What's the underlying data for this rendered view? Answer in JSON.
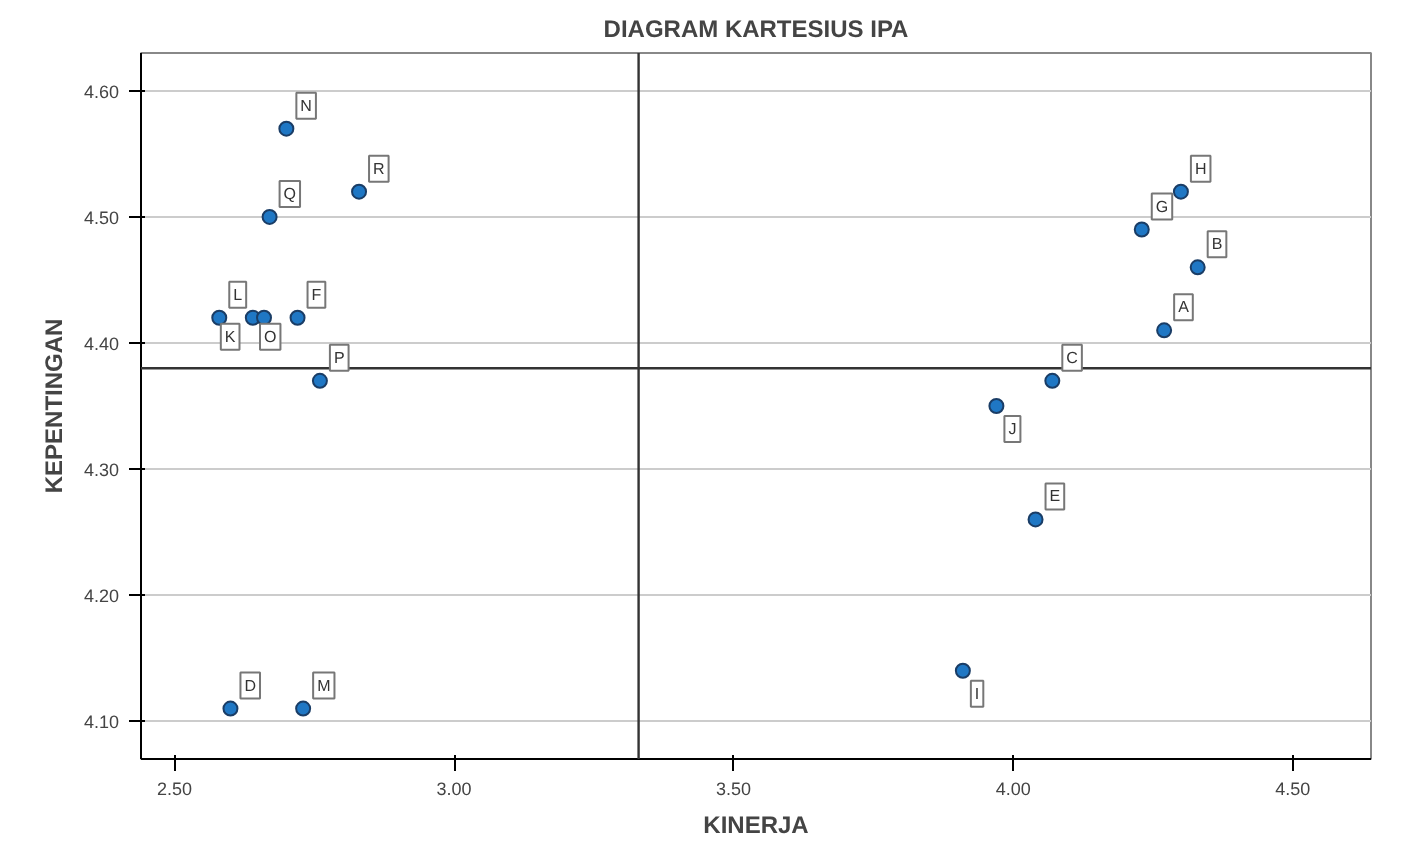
{
  "chart_data": {
    "type": "scatter",
    "title": "DIAGRAM KARTESIUS IPA",
    "xlabel": "KINERJA",
    "ylabel": "KEPENTINGAN",
    "x": [
      4.27,
      4.33,
      4.07,
      2.6,
      4.04,
      2.72,
      4.23,
      4.3,
      3.91,
      3.97,
      2.64,
      2.58,
      2.73,
      2.7,
      2.66,
      2.76,
      2.67,
      2.83
    ],
    "series": [
      {
        "color": "#1f77c4",
        "values": [
          4.41,
          4.46,
          4.37,
          4.11,
          4.26,
          4.42,
          4.49,
          4.52,
          4.14,
          4.35,
          4.42,
          4.42,
          4.11,
          4.57,
          4.42,
          4.37,
          4.5,
          4.52
        ]
      }
    ],
    "annotations": [
      {
        "text": "A",
        "x": 4.27,
        "y": 4.41
      },
      {
        "text": "B",
        "x": 4.33,
        "y": 4.46
      },
      {
        "text": "C",
        "x": 4.07,
        "y": 4.37
      },
      {
        "text": "D",
        "x": 2.6,
        "y": 4.11
      },
      {
        "text": "E",
        "x": 4.04,
        "y": 4.26
      },
      {
        "text": "F",
        "x": 2.72,
        "y": 4.42
      },
      {
        "text": "G",
        "x": 4.23,
        "y": 4.49
      },
      {
        "text": "H",
        "x": 4.3,
        "y": 4.52
      },
      {
        "text": "I",
        "x": 3.91,
        "y": 4.14
      },
      {
        "text": "J",
        "x": 3.97,
        "y": 4.35
      },
      {
        "text": "K",
        "x": 2.64,
        "y": 4.42
      },
      {
        "text": "L",
        "x": 2.58,
        "y": 4.42
      },
      {
        "text": "M",
        "x": 2.73,
        "y": 4.11
      },
      {
        "text": "N",
        "x": 2.7,
        "y": 4.57
      },
      {
        "text": "O",
        "x": 2.66,
        "y": 4.42
      },
      {
        "text": "P",
        "x": 2.76,
        "y": 4.37
      },
      {
        "text": "Q",
        "x": 2.67,
        "y": 4.5
      },
      {
        "text": "R",
        "x": 2.83,
        "y": 4.52
      }
    ],
    "ref_lines": [
      {
        "axis": "x",
        "value": 3.33,
        "color": "#333333"
      },
      {
        "axis": "y",
        "value": 4.38,
        "color": "#333333"
      }
    ],
    "xlim": [
      2.44,
      4.64
    ],
    "ylim": [
      4.07,
      4.63
    ],
    "xticks": [
      {
        "value": 2.5,
        "label": "2.50"
      },
      {
        "value": 3.0,
        "label": "3.00"
      },
      {
        "value": 3.5,
        "label": "3.50"
      },
      {
        "value": 4.0,
        "label": "4.00"
      },
      {
        "value": 4.5,
        "label": "4.50"
      }
    ],
    "yticks": [
      {
        "value": 4.1,
        "label": "4.10"
      },
      {
        "value": 4.2,
        "label": "4.20"
      },
      {
        "value": 4.3,
        "label": "4.30"
      },
      {
        "value": 4.4,
        "label": "4.40"
      },
      {
        "value": 4.5,
        "label": "4.50"
      },
      {
        "value": 4.6,
        "label": "4.60"
      }
    ],
    "grid": "y",
    "marker": "circle"
  }
}
